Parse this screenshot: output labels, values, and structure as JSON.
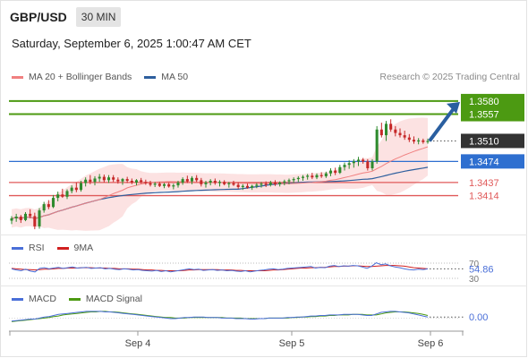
{
  "header": {
    "symbol": "GBP/USD",
    "timeframe": "30 MIN"
  },
  "datetime": "Saturday, September 6, 2025 1:00:47 AM CET",
  "legend_main": [
    {
      "label": "MA 20 + Bollinger Bands",
      "color": "#f08080"
    },
    {
      "label": "MA 50",
      "color": "#2e5f9e"
    }
  ],
  "credit": "Research © 2025 Trading Central",
  "legend_rsi": [
    {
      "label": "RSI",
      "color": "#4a6fd8"
    },
    {
      "label": "9MA",
      "color": "#d11f1f"
    }
  ],
  "legend_macd": [
    {
      "label": "MACD",
      "color": "#4a6fd8"
    },
    {
      "label": "MACD Signal",
      "color": "#4c9a12"
    }
  ],
  "colors": {
    "resistance": "#4c9a12",
    "pivot": "#2e6fd0",
    "support": "#e05a5a",
    "current": "#333333",
    "arrow": "#2a5fa0",
    "candle_up": "#2e8b2e",
    "candle_down": "#c62828",
    "band_fill": "#fbd5d5"
  },
  "chart_data": [
    {
      "type": "candlestick",
      "title": "GBP/USD",
      "ylim": [
        1.3352,
        1.3605
      ],
      "x_ticks": [
        "Sep 4",
        "Sep 5",
        "Sep 6"
      ],
      "levels": [
        {
          "label": "1.3580",
          "value": 1.358,
          "kind": "resistance",
          "line": true
        },
        {
          "label": "1.3557",
          "value": 1.3557,
          "kind": "resistance",
          "line": true
        },
        {
          "label": "1.3510",
          "value": 1.351,
          "kind": "current",
          "line": false
        },
        {
          "label": "1.3474",
          "value": 1.3474,
          "kind": "pivot",
          "line": true
        },
        {
          "label": "1.3437",
          "value": 1.3437,
          "kind": "support",
          "line": true
        },
        {
          "label": "1.3414",
          "value": 1.3414,
          "kind": "support",
          "line": true
        }
      ],
      "projection_arrow": {
        "from": 1.351,
        "to": 1.358
      },
      "candles": [
        [
          1.337,
          1.3378,
          1.3364,
          1.3374
        ],
        [
          1.3374,
          1.3382,
          1.3368,
          1.3377
        ],
        [
          1.3377,
          1.338,
          1.3366,
          1.3371
        ],
        [
          1.3371,
          1.3385,
          1.3369,
          1.3382
        ],
        [
          1.3382,
          1.339,
          1.3374,
          1.3378
        ],
        [
          1.3378,
          1.3384,
          1.3355,
          1.336
        ],
        [
          1.336,
          1.3392,
          1.3356,
          1.3388
        ],
        [
          1.3388,
          1.3403,
          1.3384,
          1.3399
        ],
        [
          1.3399,
          1.3406,
          1.339,
          1.3394
        ],
        [
          1.3394,
          1.3415,
          1.3392,
          1.341
        ],
        [
          1.341,
          1.3421,
          1.3404,
          1.3416
        ],
        [
          1.3416,
          1.3426,
          1.341,
          1.3412
        ],
        [
          1.3412,
          1.3425,
          1.3408,
          1.3422
        ],
        [
          1.3422,
          1.3432,
          1.3418,
          1.3428
        ],
        [
          1.3428,
          1.3437,
          1.342,
          1.3424
        ],
        [
          1.3424,
          1.344,
          1.3421,
          1.3436
        ],
        [
          1.3436,
          1.3446,
          1.343,
          1.3442
        ],
        [
          1.3442,
          1.345,
          1.3434,
          1.3438
        ],
        [
          1.3438,
          1.3448,
          1.3432,
          1.3444
        ],
        [
          1.3444,
          1.3452,
          1.3438,
          1.3447
        ],
        [
          1.3447,
          1.3451,
          1.3437,
          1.3441
        ],
        [
          1.3441,
          1.345,
          1.3436,
          1.3446
        ],
        [
          1.3446,
          1.345,
          1.3438,
          1.3442
        ],
        [
          1.3442,
          1.3446,
          1.3435,
          1.3439
        ],
        [
          1.3439,
          1.3445,
          1.3433,
          1.3443
        ],
        [
          1.3443,
          1.3447,
          1.3436,
          1.344
        ],
        [
          1.344,
          1.3444,
          1.3434,
          1.3437
        ],
        [
          1.3437,
          1.3443,
          1.3432,
          1.3441
        ],
        [
          1.3441,
          1.3445,
          1.3435,
          1.3438
        ],
        [
          1.3438,
          1.3442,
          1.3433,
          1.3436
        ],
        [
          1.3436,
          1.344,
          1.343,
          1.3433
        ],
        [
          1.3433,
          1.3438,
          1.3429,
          1.3435
        ],
        [
          1.3435,
          1.3438,
          1.3429,
          1.3431
        ],
        [
          1.3431,
          1.3436,
          1.3427,
          1.3434
        ],
        [
          1.3434,
          1.3437,
          1.3428,
          1.343
        ],
        [
          1.343,
          1.3435,
          1.3425,
          1.3432
        ],
        [
          1.3432,
          1.344,
          1.3428,
          1.3437
        ],
        [
          1.3437,
          1.3446,
          1.3433,
          1.3443
        ],
        [
          1.3443,
          1.3449,
          1.3436,
          1.3439
        ],
        [
          1.3439,
          1.3448,
          1.3434,
          1.3445
        ],
        [
          1.3445,
          1.345,
          1.3438,
          1.3441
        ],
        [
          1.3441,
          1.3445,
          1.343,
          1.3434
        ],
        [
          1.3434,
          1.344,
          1.3428,
          1.3437
        ],
        [
          1.3437,
          1.3443,
          1.3432,
          1.344
        ],
        [
          1.344,
          1.3444,
          1.3433,
          1.3436
        ],
        [
          1.3436,
          1.3441,
          1.343,
          1.3438
        ],
        [
          1.3438,
          1.3441,
          1.3432,
          1.3434
        ],
        [
          1.3434,
          1.3438,
          1.3428,
          1.3436
        ],
        [
          1.3436,
          1.344,
          1.3431,
          1.3433
        ],
        [
          1.3433,
          1.3437,
          1.3426,
          1.3429
        ],
        [
          1.3429,
          1.3434,
          1.3424,
          1.3431
        ],
        [
          1.3431,
          1.3435,
          1.3426,
          1.3428
        ],
        [
          1.3428,
          1.3433,
          1.3424,
          1.3431
        ],
        [
          1.3431,
          1.3436,
          1.3427,
          1.3433
        ],
        [
          1.3433,
          1.3438,
          1.3428,
          1.3435
        ],
        [
          1.3435,
          1.3439,
          1.3429,
          1.3433
        ],
        [
          1.3433,
          1.344,
          1.343,
          1.3437
        ],
        [
          1.3437,
          1.3441,
          1.3431,
          1.3434
        ],
        [
          1.3434,
          1.3439,
          1.343,
          1.3437
        ],
        [
          1.3437,
          1.3442,
          1.3432,
          1.3439
        ],
        [
          1.3439,
          1.3444,
          1.3434,
          1.3441
        ],
        [
          1.3441,
          1.3446,
          1.3436,
          1.3443
        ],
        [
          1.3443,
          1.3448,
          1.3438,
          1.3445
        ],
        [
          1.3445,
          1.345,
          1.344,
          1.3447
        ],
        [
          1.3447,
          1.3452,
          1.3442,
          1.3449
        ],
        [
          1.3449,
          1.3454,
          1.3443,
          1.3446
        ],
        [
          1.3446,
          1.3453,
          1.3443,
          1.345
        ],
        [
          1.345,
          1.3455,
          1.3445,
          1.3448
        ],
        [
          1.3448,
          1.3456,
          1.3445,
          1.3453
        ],
        [
          1.3453,
          1.3462,
          1.3448,
          1.3458
        ],
        [
          1.3458,
          1.3463,
          1.345,
          1.3454
        ],
        [
          1.3454,
          1.3468,
          1.3452,
          1.3464
        ],
        [
          1.3464,
          1.3472,
          1.3458,
          1.3468
        ],
        [
          1.3468,
          1.3476,
          1.3461,
          1.3471
        ],
        [
          1.3471,
          1.3478,
          1.3463,
          1.3474
        ],
        [
          1.3474,
          1.3482,
          1.3466,
          1.3477
        ],
        [
          1.3477,
          1.348,
          1.347,
          1.3474
        ],
        [
          1.3474,
          1.3478,
          1.3458,
          1.3462
        ],
        [
          1.3462,
          1.3478,
          1.3458,
          1.3474
        ],
        [
          1.3474,
          1.3536,
          1.347,
          1.353
        ],
        [
          1.353,
          1.3542,
          1.3516,
          1.352
        ],
        [
          1.352,
          1.3545,
          1.351,
          1.354
        ],
        [
          1.354,
          1.3548,
          1.3526,
          1.353
        ],
        [
          1.353,
          1.3536,
          1.3518,
          1.3524
        ],
        [
          1.3524,
          1.3532,
          1.3516,
          1.352
        ],
        [
          1.352,
          1.3528,
          1.3512,
          1.3516
        ],
        [
          1.3516,
          1.3522,
          1.3508,
          1.3512
        ],
        [
          1.3512,
          1.3518,
          1.3505,
          1.3509
        ],
        [
          1.3509,
          1.3515,
          1.3504,
          1.3511
        ],
        [
          1.3511,
          1.3514,
          1.3505,
          1.3508
        ],
        [
          1.3508,
          1.3514,
          1.3505,
          1.351
        ]
      ]
    },
    {
      "type": "line",
      "title": "RSI",
      "ylim": [
        30,
        70
      ],
      "y_ticks": [
        30,
        70
      ],
      "last_value_label": "54.86",
      "series": [
        {
          "name": "RSI",
          "values": [
            55,
            52,
            50,
            54,
            49,
            47,
            56,
            58,
            55,
            57,
            59,
            56,
            58,
            60,
            57,
            58,
            59,
            56,
            57,
            58,
            55,
            56,
            54,
            53,
            55,
            54,
            52,
            53,
            51,
            50,
            49,
            51,
            48,
            50,
            47,
            49,
            51,
            53,
            55,
            53,
            54,
            51,
            52,
            53,
            51,
            52,
            50,
            51,
            49,
            48,
            50,
            47,
            49,
            51,
            52,
            54,
            55,
            53,
            54,
            56,
            57,
            58,
            59,
            60,
            61,
            57,
            59,
            58,
            62,
            64,
            61,
            63,
            62,
            64,
            63,
            60,
            56,
            62,
            71,
            66,
            68,
            63,
            60,
            58,
            55,
            53,
            52,
            54,
            53,
            54.86
          ]
        },
        {
          "name": "9MA",
          "values": [
            56,
            55,
            54,
            53,
            53,
            52,
            53,
            54,
            54,
            55,
            56,
            56,
            57,
            57,
            57,
            58,
            58,
            58,
            57,
            57,
            57,
            56,
            56,
            55,
            55,
            55,
            54,
            54,
            53,
            52,
            52,
            51,
            51,
            50,
            50,
            50,
            50,
            51,
            52,
            52,
            53,
            53,
            53,
            53,
            53,
            52,
            52,
            52,
            51,
            51,
            50,
            50,
            50,
            50,
            50,
            51,
            52,
            52,
            53,
            54,
            55,
            56,
            57,
            57,
            58,
            58,
            59,
            59,
            60,
            61,
            61,
            62,
            62,
            63,
            63,
            62,
            61,
            61,
            62,
            63,
            64,
            64,
            64,
            63,
            62,
            60,
            58,
            57,
            56,
            55
          ]
        }
      ]
    },
    {
      "type": "line",
      "title": "MACD",
      "ylim": [
        -0.0008,
        0.0018
      ],
      "last_value_label": "0.00",
      "series": [
        {
          "name": "MACD",
          "values": [
            -0.0006,
            -0.0005,
            -0.0004,
            -0.0003,
            -0.0002,
            -0.0002,
            0.0,
            0.0002,
            0.0003,
            0.0005,
            0.0007,
            0.0008,
            0.0009,
            0.001,
            0.0011,
            0.0012,
            0.0013,
            0.0013,
            0.0013,
            0.0013,
            0.0012,
            0.0012,
            0.0011,
            0.001,
            0.0009,
            0.0008,
            0.0007,
            0.0006,
            0.0005,
            0.0004,
            0.0003,
            0.0002,
            0.0001,
            0.0,
            -0.0001,
            -0.0001,
            0.0,
            0.0001,
            0.0001,
            0.0002,
            0.0002,
            0.0002,
            0.0001,
            0.0001,
            0.0001,
            0.0,
            0.0,
            0.0,
            -0.0001,
            -0.0001,
            -0.0001,
            -0.0002,
            -0.0002,
            -0.0001,
            -0.0001,
            0.0,
            0.0,
            0.0,
            0.0,
            0.0001,
            0.0001,
            0.0002,
            0.0002,
            0.0003,
            0.0004,
            0.0004,
            0.0005,
            0.0005,
            0.0006,
            0.0006,
            0.0006,
            0.0007,
            0.0007,
            0.0007,
            0.0007,
            0.0006,
            0.0005,
            0.0005,
            0.0008,
            0.0011,
            0.0012,
            0.0013,
            0.0013,
            0.0012,
            0.0011,
            0.001,
            0.0008,
            0.0006,
            0.0004,
            0.0002
          ]
        },
        {
          "name": "MACD Signal",
          "values": [
            -0.0007,
            -0.0006,
            -0.0005,
            -0.0004,
            -0.0003,
            -0.0002,
            -0.0001,
            0.0,
            0.0001,
            0.0003,
            0.0004,
            0.0006,
            0.0007,
            0.0008,
            0.0009,
            0.001,
            0.0011,
            0.0012,
            0.0012,
            0.0013,
            0.0013,
            0.0012,
            0.0012,
            0.0011,
            0.001,
            0.0009,
            0.0008,
            0.0007,
            0.0006,
            0.0005,
            0.0004,
            0.0003,
            0.0002,
            0.0001,
            0.0001,
            0.0,
            0.0,
            0.0,
            0.0001,
            0.0001,
            0.0001,
            0.0001,
            0.0001,
            0.0001,
            0.0001,
            0.0001,
            0.0,
            0.0,
            0.0,
            0.0,
            -0.0001,
            -0.0001,
            -0.0001,
            -0.0001,
            -0.0001,
            0.0,
            0.0,
            0.0,
            0.0,
            0.0,
            0.0001,
            0.0001,
            0.0002,
            0.0002,
            0.0003,
            0.0003,
            0.0004,
            0.0004,
            0.0005,
            0.0005,
            0.0006,
            0.0006,
            0.0006,
            0.0007,
            0.0007,
            0.0007,
            0.0006,
            0.0006,
            0.0006,
            0.0008,
            0.001,
            0.0011,
            0.0012,
            0.0012,
            0.0012,
            0.0011,
            0.001,
            0.0009,
            0.0007,
            0.0005
          ]
        }
      ]
    }
  ]
}
